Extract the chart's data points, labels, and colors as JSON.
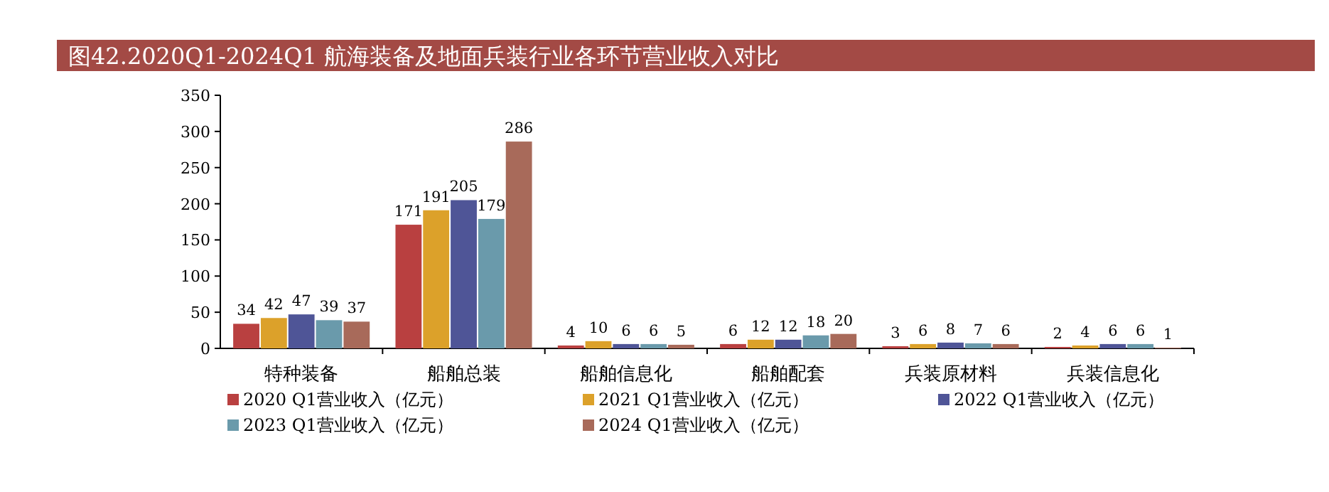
{
  "chart_data": {
    "type": "bar",
    "title": "图42.2020Q1-2024Q1 航海装备及地面兵装行业各环节营业收入对比",
    "categories": [
      "特种装备",
      "船舶总装",
      "船舶信息化",
      "船舶配套",
      "兵装原材料",
      "兵装信息化"
    ],
    "series": [
      {
        "name": "2020 Q1营业收入（亿元）",
        "color": "#b94040",
        "values": [
          34,
          171,
          4,
          6,
          3,
          2
        ]
      },
      {
        "name": "2021 Q1营业收入（亿元）",
        "color": "#dca12a",
        "values": [
          42,
          191,
          10,
          12,
          6,
          4
        ]
      },
      {
        "name": "2022 Q1营业收入（亿元）",
        "color": "#4f5597",
        "values": [
          47,
          205,
          6,
          12,
          8,
          6
        ]
      },
      {
        "name": "2023 Q1营业收入（亿元）",
        "color": "#6a9aab",
        "values": [
          39,
          179,
          6,
          18,
          7,
          6
        ]
      },
      {
        "name": "2024 Q1营业收入（亿元）",
        "color": "#a86a5a",
        "values": [
          37,
          286,
          5,
          20,
          6,
          1
        ]
      }
    ],
    "ylim": [
      0,
      350
    ],
    "yticks": [
      0,
      50,
      100,
      150,
      200,
      250,
      300,
      350
    ],
    "data_labels": true,
    "legend": "bottom",
    "grid": false
  }
}
